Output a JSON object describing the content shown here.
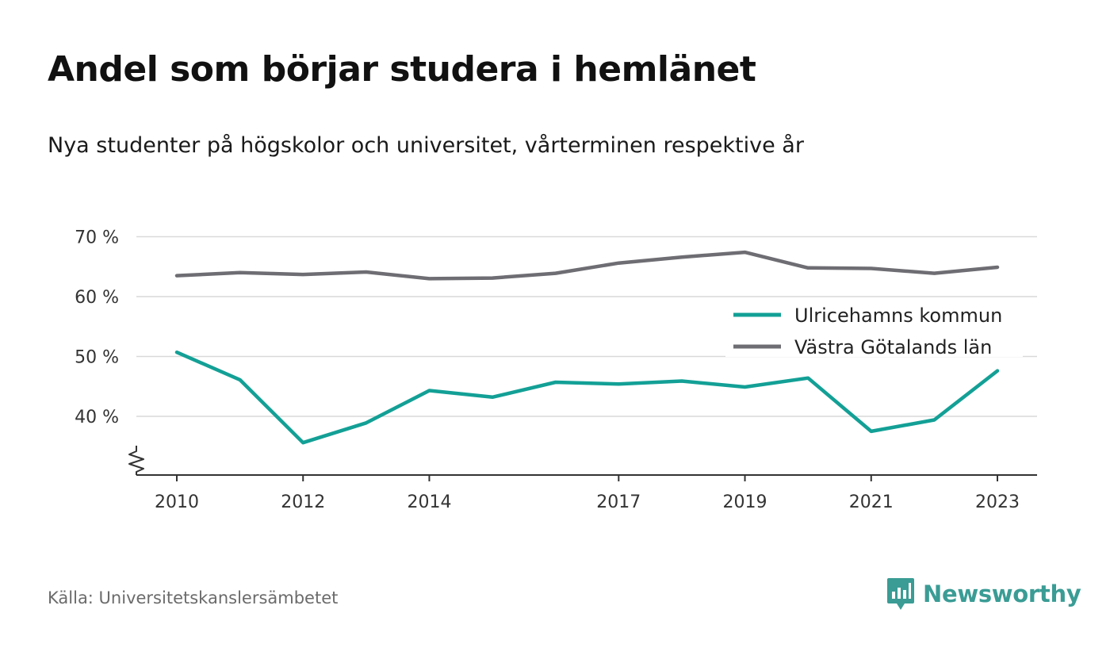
{
  "title": "Andel som börjar studera i hemlänet",
  "subtitle": "Nya studenter på högskolor och universitet, vårterminen respektive år",
  "source": "Källa: Universitetskanslersämbetet",
  "brand": {
    "name": "Newsworthy",
    "icon": "newsworthy-logo-icon",
    "color": "#3a9c95"
  },
  "chart_data": {
    "type": "line",
    "x": [
      2010,
      2011,
      2012,
      2013,
      2014,
      2015,
      2016,
      2017,
      2018,
      2019,
      2020,
      2021,
      2022,
      2023
    ],
    "x_ticks": [
      2010,
      2012,
      2014,
      2017,
      2019,
      2021,
      2023
    ],
    "x_tick_labels": [
      "2010",
      "2012",
      "2014",
      "2017",
      "2019",
      "2021",
      "2023"
    ],
    "y_ticks": [
      40,
      50,
      60,
      70
    ],
    "y_tick_labels": [
      "40 %",
      "50 %",
      "60 %",
      "70 %"
    ],
    "ylim": [
      30,
      70
    ],
    "y_axis_break": true,
    "grid": true,
    "legend_position": "right",
    "series": [
      {
        "name": "Ulricehamns kommun",
        "color": "#13a096",
        "values": [
          50.7,
          46.1,
          35.6,
          38.9,
          44.3,
          43.2,
          45.7,
          45.4,
          45.9,
          44.9,
          46.4,
          37.5,
          39.4,
          47.6
        ]
      },
      {
        "name": "Västra Götalands län",
        "color": "#6e6d73",
        "values": [
          63.5,
          64.0,
          63.7,
          64.1,
          63.0,
          63.1,
          63.9,
          65.6,
          66.6,
          67.4,
          64.8,
          64.7,
          63.9,
          64.9
        ]
      }
    ]
  }
}
